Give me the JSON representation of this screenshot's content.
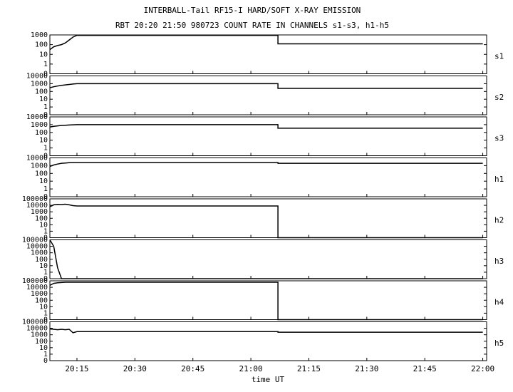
{
  "chart_data": {
    "type": "multi-panel",
    "title": "INTERBALL-Tail RF15-I HARD/SOFT X-RAY EMISSION",
    "subtitle": "RBT 20:20 21:50 980723  COUNT RATE IN CHANNELS s1-s3, h1-h5",
    "x_label": "time UT",
    "xlim": [
      1208,
      1321
    ],
    "xticks": [
      {
        "value": 1215,
        "label": "20:15"
      },
      {
        "value": 1230,
        "label": "20:30"
      },
      {
        "value": 1245,
        "label": "20:45"
      },
      {
        "value": 1260,
        "label": "21:00"
      },
      {
        "value": 1275,
        "label": "21:15"
      },
      {
        "value": 1290,
        "label": "21:30"
      },
      {
        "value": 1305,
        "label": "21:45"
      },
      {
        "value": 1320,
        "label": "22:00"
      }
    ],
    "x": [
      1208,
      1209,
      1210,
      1211,
      1212,
      1213,
      1214,
      1215,
      1267,
      1267,
      1320
    ],
    "panels": [
      {
        "type": "line",
        "name": "s1",
        "scale": "log-zero",
        "color": "#000000",
        "ylim": [
          0,
          1000
        ],
        "yticks": [
          0,
          1,
          10,
          100,
          1000
        ],
        "values": [
          30,
          60,
          80,
          100,
          150,
          300,
          600,
          900,
          900,
          120,
          120
        ]
      },
      {
        "type": "line",
        "name": "s2",
        "scale": "log-zero",
        "color": "#000000",
        "ylim": [
          0,
          10000
        ],
        "yticks": [
          0,
          1,
          10,
          100,
          1000,
          10000
        ],
        "values": [
          300,
          400,
          500,
          600,
          700,
          800,
          900,
          1000,
          1000,
          250,
          250
        ]
      },
      {
        "type": "line",
        "name": "s3",
        "scale": "log-zero",
        "color": "#000000",
        "ylim": [
          0,
          10000
        ],
        "yticks": [
          0,
          1,
          10,
          100,
          1000,
          10000
        ],
        "values": [
          500,
          600,
          700,
          800,
          850,
          900,
          950,
          1000,
          1000,
          350,
          350
        ]
      },
      {
        "type": "line",
        "name": "h1",
        "scale": "log-zero",
        "color": "#000000",
        "ylim": [
          0,
          10000
        ],
        "yticks": [
          0,
          1,
          10,
          100,
          1000,
          10000
        ],
        "values": [
          800,
          1200,
          1600,
          2000,
          2200,
          2400,
          2500,
          2500,
          2500,
          2000,
          2000
        ]
      },
      {
        "type": "line",
        "name": "h2",
        "scale": "log-zero",
        "color": "#000000",
        "ylim": [
          0,
          100000
        ],
        "yticks": [
          0,
          1,
          10,
          100,
          1000,
          10000,
          100000
        ],
        "values": [
          6000,
          12000,
          14000,
          13000,
          15000,
          12000,
          9000,
          8000,
          8000,
          0,
          0
        ]
      },
      {
        "type": "line",
        "name": "h3",
        "scale": "log-zero",
        "color": "#000000",
        "ylim": [
          0,
          100000
        ],
        "yticks": [
          0,
          1,
          10,
          100,
          1000,
          10000,
          100000
        ],
        "values": [
          100000,
          10000,
          5,
          0,
          0,
          0,
          0,
          0,
          0,
          0,
          0
        ]
      },
      {
        "type": "line",
        "name": "h4",
        "scale": "log-zero",
        "color": "#000000",
        "ylim": [
          0,
          100000
        ],
        "yticks": [
          0,
          1,
          10,
          100,
          1000,
          10000,
          100000
        ],
        "values": [
          20000,
          40000,
          50000,
          55000,
          60000,
          60000,
          60000,
          60000,
          60000,
          0,
          0
        ]
      },
      {
        "type": "line",
        "name": "h5",
        "scale": "log-zero",
        "color": "#000000",
        "ylim": [
          0,
          100000
        ],
        "yticks": [
          0,
          1,
          10,
          100,
          1000,
          10000,
          100000
        ],
        "values": [
          8000,
          7000,
          6000,
          7000,
          6000,
          7000,
          2000,
          3000,
          3000,
          2500,
          2500
        ]
      }
    ]
  }
}
